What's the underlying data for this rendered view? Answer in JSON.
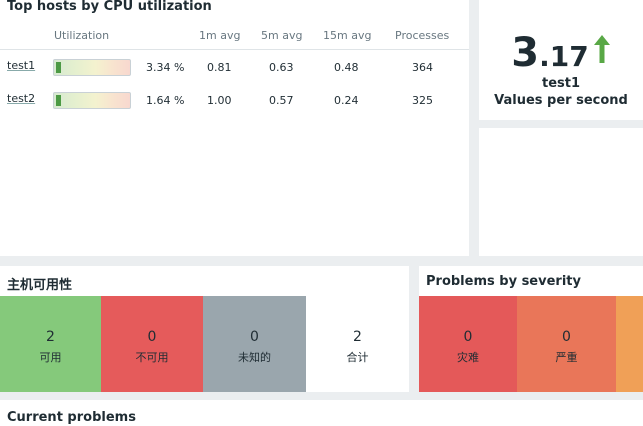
{
  "top_hosts": {
    "title": "Top hosts by CPU utilization",
    "columns": [
      "Utilization",
      "1m avg",
      "5m avg",
      "15m avg",
      "Processes"
    ],
    "rows": [
      {
        "host": "test1",
        "utilization": "3.34 %",
        "utilization_fraction": 0.0334,
        "avg1": "0.81",
        "avg5": "0.63",
        "avg15": "0.48",
        "processes": "364"
      },
      {
        "host": "test2",
        "utilization": "1.64 %",
        "utilization_fraction": 0.0164,
        "avg1": "1.00",
        "avg5": "0.57",
        "avg15": "0.24",
        "processes": "325"
      }
    ]
  },
  "item_value": {
    "value_int": "3",
    "value_dec": ".17",
    "trend": "up",
    "trend_color": "#59a846",
    "host": "test1",
    "description": "Values per second"
  },
  "host_availability": {
    "title": "主机可用性",
    "tiles": [
      {
        "count": "2",
        "label": "可用",
        "color": "#85c97b"
      },
      {
        "count": "0",
        "label": "不可用",
        "color": "#e55b5b"
      },
      {
        "count": "0",
        "label": "未知的",
        "color": "#9aa6ad"
      },
      {
        "count": "2",
        "label": "合计",
        "color": "#ffffff"
      }
    ]
  },
  "problems_by_severity": {
    "title": "Problems by severity",
    "tiles": [
      {
        "count": "0",
        "label": "灾难",
        "color": "#e45959"
      },
      {
        "count": "0",
        "label": "严重",
        "color": "#e97659"
      },
      {
        "count": "",
        "label": "",
        "color": "#f0a057"
      }
    ]
  },
  "current_problems": {
    "title": "Current problems"
  }
}
